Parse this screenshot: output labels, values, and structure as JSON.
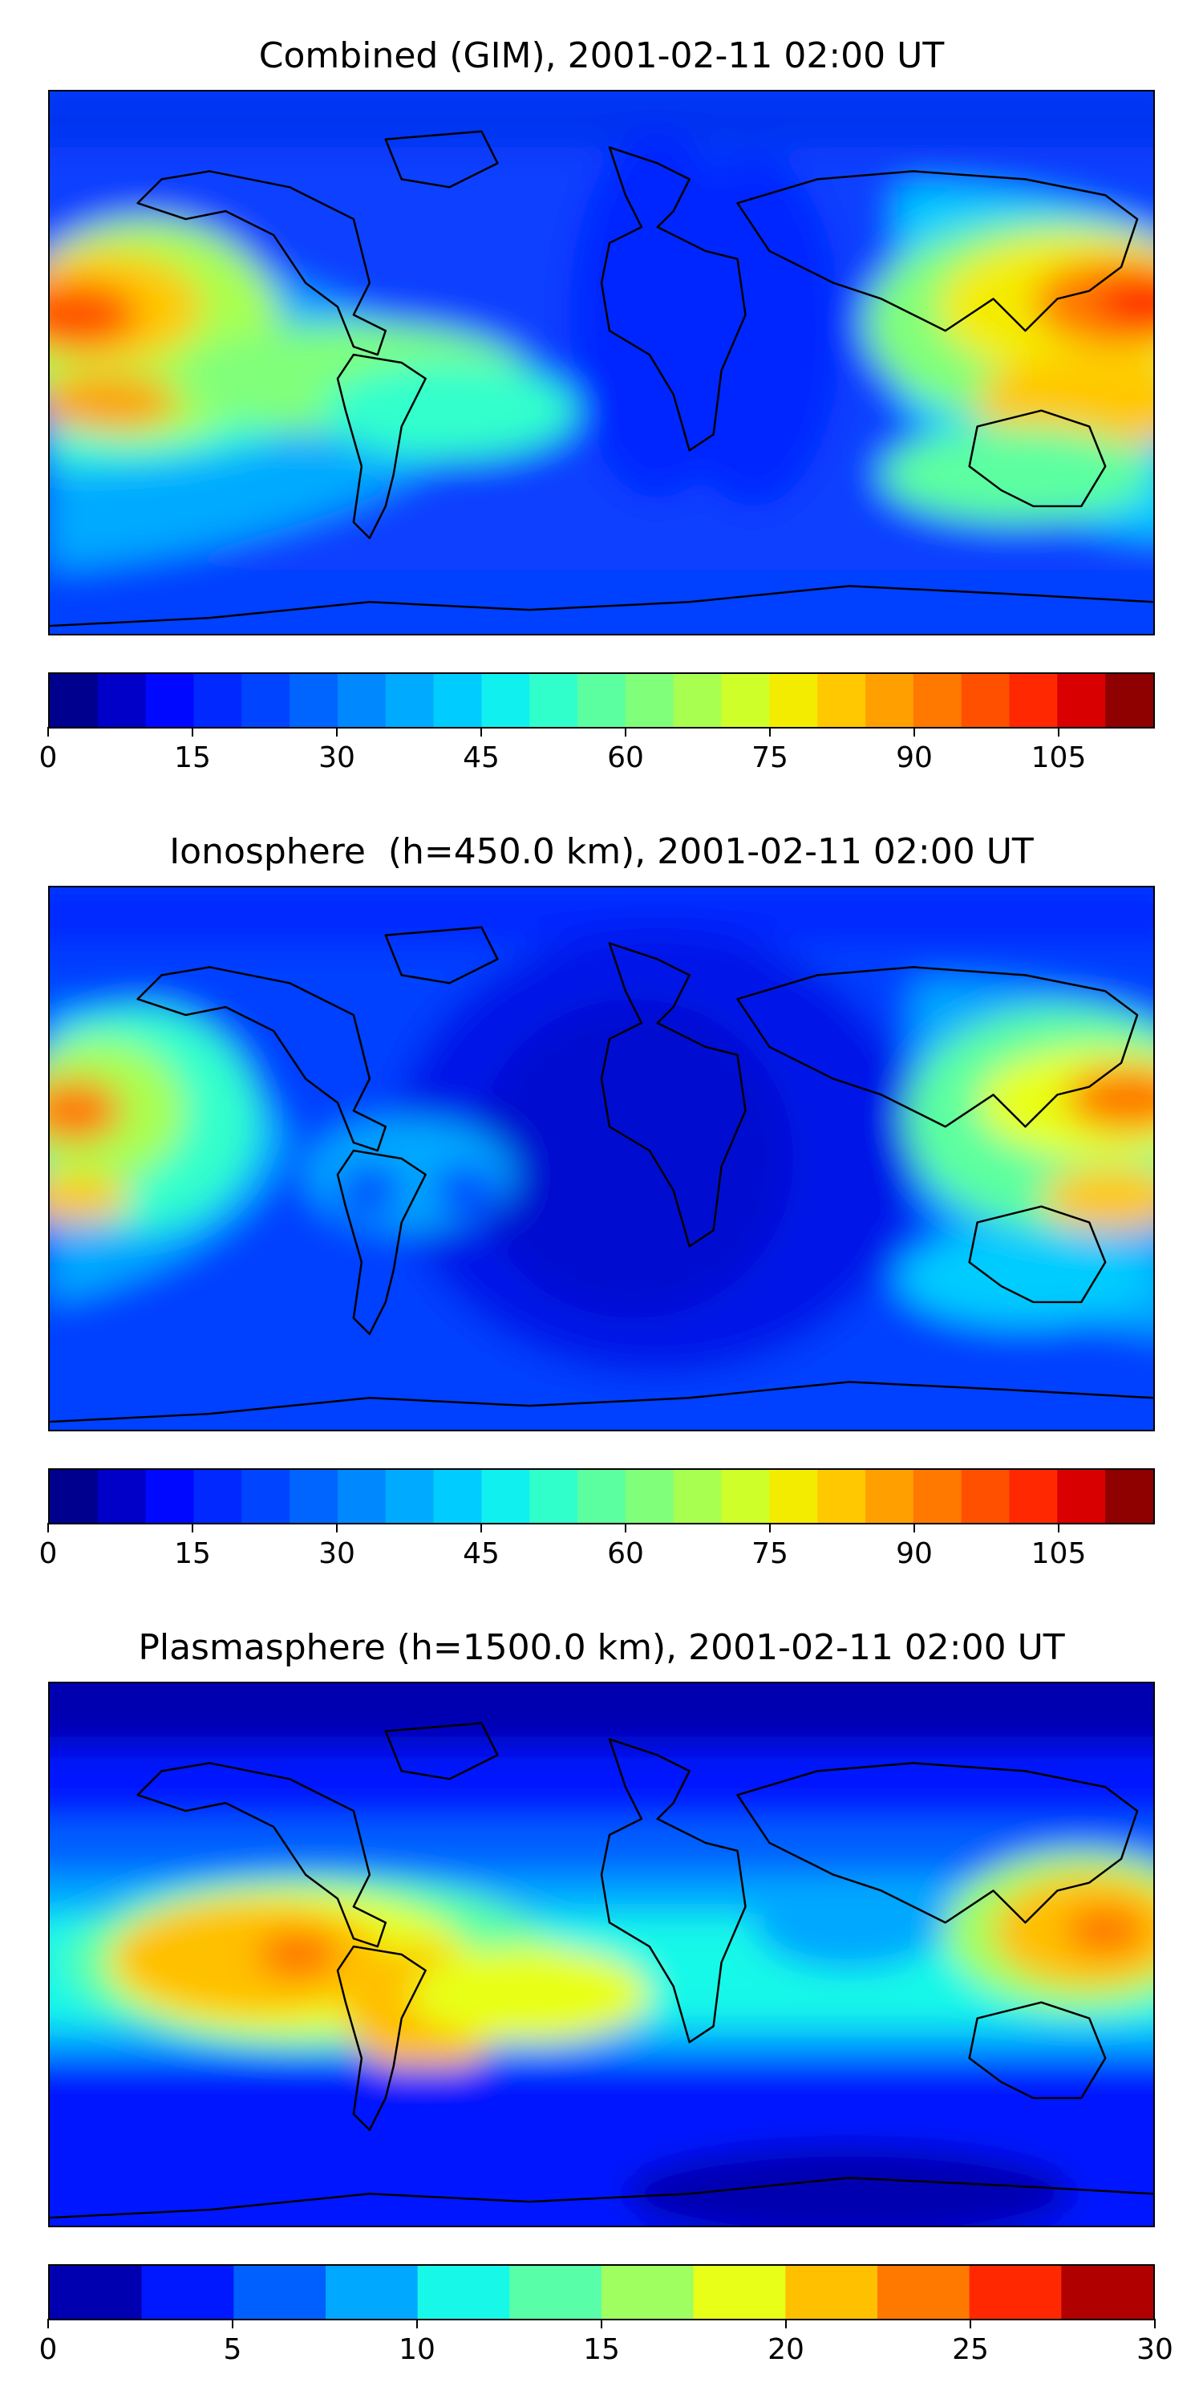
{
  "panels": [
    {
      "title": "Combined (GIM), 2001-02-11 02:00 UT",
      "colorbar": {
        "min": 0,
        "max": 115,
        "ticks": [
          "0",
          "15",
          "30",
          "45",
          "60",
          "75",
          "90",
          "105"
        ],
        "tick_values": [
          0,
          15,
          30,
          45,
          60,
          75,
          90,
          105
        ],
        "levels": 23,
        "colors": [
          "#00008f",
          "#0000c8",
          "#0008ff",
          "#0028ff",
          "#0044ff",
          "#0064ff",
          "#0088ff",
          "#00aaff",
          "#00ccff",
          "#10f0ee",
          "#30ffcc",
          "#5cffa0",
          "#80ff7a",
          "#a8ff50",
          "#cfff28",
          "#f4ec00",
          "#ffc800",
          "#ffa000",
          "#ff7800",
          "#ff5000",
          "#ff2800",
          "#d80000",
          "#8f0000"
        ]
      }
    },
    {
      "title": "Ionosphere  (h=450.0 km), 2001-02-11 02:00 UT",
      "colorbar": {
        "min": 0,
        "max": 115,
        "ticks": [
          "0",
          "15",
          "30",
          "45",
          "60",
          "75",
          "90",
          "105"
        ],
        "tick_values": [
          0,
          15,
          30,
          45,
          60,
          75,
          90,
          105
        ],
        "levels": 23,
        "colors": [
          "#00008f",
          "#0000c8",
          "#0008ff",
          "#0028ff",
          "#0044ff",
          "#0064ff",
          "#0088ff",
          "#00aaff",
          "#00ccff",
          "#10f0ee",
          "#30ffcc",
          "#5cffa0",
          "#80ff7a",
          "#a8ff50",
          "#cfff28",
          "#f4ec00",
          "#ffc800",
          "#ffa000",
          "#ff7800",
          "#ff5000",
          "#ff2800",
          "#d80000",
          "#8f0000"
        ]
      }
    },
    {
      "title": "Plasmasphere (h=1500.0 km), 2001-02-11 02:00 UT",
      "colorbar": {
        "min": 0,
        "max": 30,
        "ticks": [
          "0",
          "5",
          "10",
          "15",
          "20",
          "25",
          "30"
        ],
        "tick_values": [
          0,
          5,
          10,
          15,
          20,
          25,
          30
        ],
        "levels": 12,
        "colors": [
          "#0000b0",
          "#0018ff",
          "#0060ff",
          "#00a8ff",
          "#18f8e8",
          "#58ffa8",
          "#a0ff60",
          "#e8ff18",
          "#ffc000",
          "#ff7800",
          "#ff2800",
          "#b00000"
        ]
      }
    }
  ]
}
